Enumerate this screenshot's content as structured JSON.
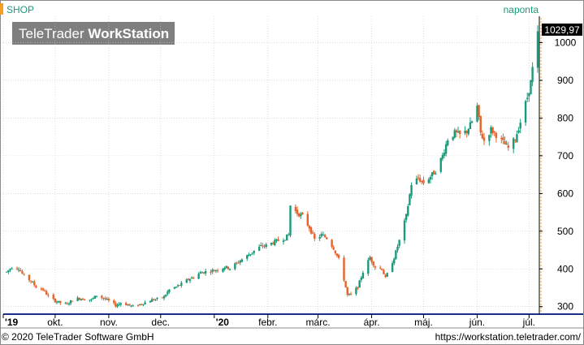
{
  "header": {
    "symbol": "SHOP",
    "interval": "naponta",
    "watermark_part1": "TeleTrader ",
    "watermark_part2": "WorkStation"
  },
  "footer": {
    "copyright": "© 2020 TeleTrader Software GmbH",
    "url": "https://workstation.teletrader.com/"
  },
  "colors": {
    "up": "#1a9a7a",
    "down": "#e8622a",
    "accent_orange": "#f5a020",
    "grid": "#c8c8c8",
    "axis_blue": "#1a2f8a",
    "header_text": "#1a9a7a"
  },
  "chart_data": {
    "type": "candlestick",
    "title": "",
    "y_axis": {
      "side": "right",
      "range": [
        280,
        1070
      ],
      "ticks": [
        300,
        400,
        500,
        600,
        700,
        800,
        900,
        1000
      ]
    },
    "x_axis": {
      "range": [
        "2019-09-01",
        "2020-07-06"
      ],
      "labels": [
        {
          "label": "'19",
          "date": "2019-09-01"
        },
        {
          "label": "okt.",
          "date": "2019-10-01"
        },
        {
          "label": "nov.",
          "date": "2019-11-01"
        },
        {
          "label": "dec.",
          "date": "2019-12-01"
        },
        {
          "label": "'20",
          "date": "2020-01-01"
        },
        {
          "label": "febr.",
          "date": "2020-02-01"
        },
        {
          "label": "márc.",
          "date": "2020-03-01"
        },
        {
          "label": "ápr.",
          "date": "2020-04-01"
        },
        {
          "label": "máj.",
          "date": "2020-05-01"
        },
        {
          "label": "jún.",
          "date": "2020-06-01"
        },
        {
          "label": "júl.",
          "date": "2020-07-01"
        }
      ]
    },
    "last_price": 1029.97,
    "last_price_label": "1029,97",
    "grid": true,
    "price_path": [
      [
        "2019-09-03",
        392
      ],
      [
        "2019-09-06",
        405
      ],
      [
        "2019-09-10",
        402
      ],
      [
        "2019-09-13",
        380
      ],
      [
        "2019-09-17",
        368
      ],
      [
        "2019-09-20",
        352
      ],
      [
        "2019-09-24",
        345
      ],
      [
        "2019-09-27",
        328
      ],
      [
        "2019-10-01",
        315
      ],
      [
        "2019-10-04",
        310
      ],
      [
        "2019-10-08",
        306
      ],
      [
        "2019-10-11",
        318
      ],
      [
        "2019-10-15",
        322
      ],
      [
        "2019-10-18",
        320
      ],
      [
        "2019-10-22",
        318
      ],
      [
        "2019-10-25",
        330
      ],
      [
        "2019-10-29",
        322
      ],
      [
        "2019-11-01",
        315
      ],
      [
        "2019-11-05",
        303
      ],
      [
        "2019-11-08",
        310
      ],
      [
        "2019-11-12",
        305
      ],
      [
        "2019-11-15",
        300
      ],
      [
        "2019-11-19",
        306
      ],
      [
        "2019-11-22",
        311
      ],
      [
        "2019-11-26",
        318
      ],
      [
        "2019-11-29",
        320
      ],
      [
        "2019-12-03",
        326
      ],
      [
        "2019-12-06",
        345
      ],
      [
        "2019-12-10",
        352
      ],
      [
        "2019-12-13",
        360
      ],
      [
        "2019-12-17",
        372
      ],
      [
        "2019-12-20",
        378
      ],
      [
        "2019-12-24",
        390
      ],
      [
        "2019-12-30",
        395
      ],
      [
        "2020-01-03",
        398
      ],
      [
        "2020-01-07",
        405
      ],
      [
        "2020-01-10",
        402
      ],
      [
        "2020-01-14",
        415
      ],
      [
        "2020-01-17",
        425
      ],
      [
        "2020-01-21",
        438
      ],
      [
        "2020-01-24",
        448
      ],
      [
        "2020-01-28",
        460
      ],
      [
        "2020-01-31",
        462
      ],
      [
        "2020-02-04",
        470
      ],
      [
        "2020-02-07",
        475
      ],
      [
        "2020-02-11",
        482
      ],
      [
        "2020-02-13",
        490
      ],
      [
        "2020-02-14",
        568
      ],
      [
        "2020-02-18",
        548
      ],
      [
        "2020-02-21",
        540
      ],
      [
        "2020-02-25",
        510
      ],
      [
        "2020-02-28",
        478
      ],
      [
        "2020-03-03",
        490
      ],
      [
        "2020-03-06",
        482
      ],
      [
        "2020-03-10",
        455
      ],
      [
        "2020-03-13",
        425
      ],
      [
        "2020-03-16",
        372
      ],
      [
        "2020-03-18",
        330
      ],
      [
        "2020-03-20",
        332
      ],
      [
        "2020-03-24",
        352
      ],
      [
        "2020-03-27",
        392
      ],
      [
        "2020-03-31",
        430
      ],
      [
        "2020-04-03",
        405
      ],
      [
        "2020-04-07",
        400
      ],
      [
        "2020-04-09",
        375
      ],
      [
        "2020-04-14",
        430
      ],
      [
        "2020-04-17",
        475
      ],
      [
        "2020-04-21",
        540
      ],
      [
        "2020-04-24",
        625
      ],
      [
        "2020-04-28",
        640
      ],
      [
        "2020-05-01",
        628
      ],
      [
        "2020-05-05",
        645
      ],
      [
        "2020-05-08",
        660
      ],
      [
        "2020-05-12",
        700
      ],
      [
        "2020-05-15",
        745
      ],
      [
        "2020-05-19",
        760
      ],
      [
        "2020-05-22",
        755
      ],
      [
        "2020-05-26",
        765
      ],
      [
        "2020-05-29",
        790
      ],
      [
        "2020-06-01",
        830
      ],
      [
        "2020-06-03",
        760
      ],
      [
        "2020-06-05",
        740
      ],
      [
        "2020-06-09",
        770
      ],
      [
        "2020-06-12",
        755
      ],
      [
        "2020-06-16",
        735
      ],
      [
        "2020-06-19",
        720
      ],
      [
        "2020-06-23",
        745
      ],
      [
        "2020-06-26",
        790
      ],
      [
        "2020-06-30",
        855
      ],
      [
        "2020-07-02",
        895
      ],
      [
        "2020-07-03",
        930
      ],
      [
        "2020-07-06",
        1030
      ]
    ]
  }
}
